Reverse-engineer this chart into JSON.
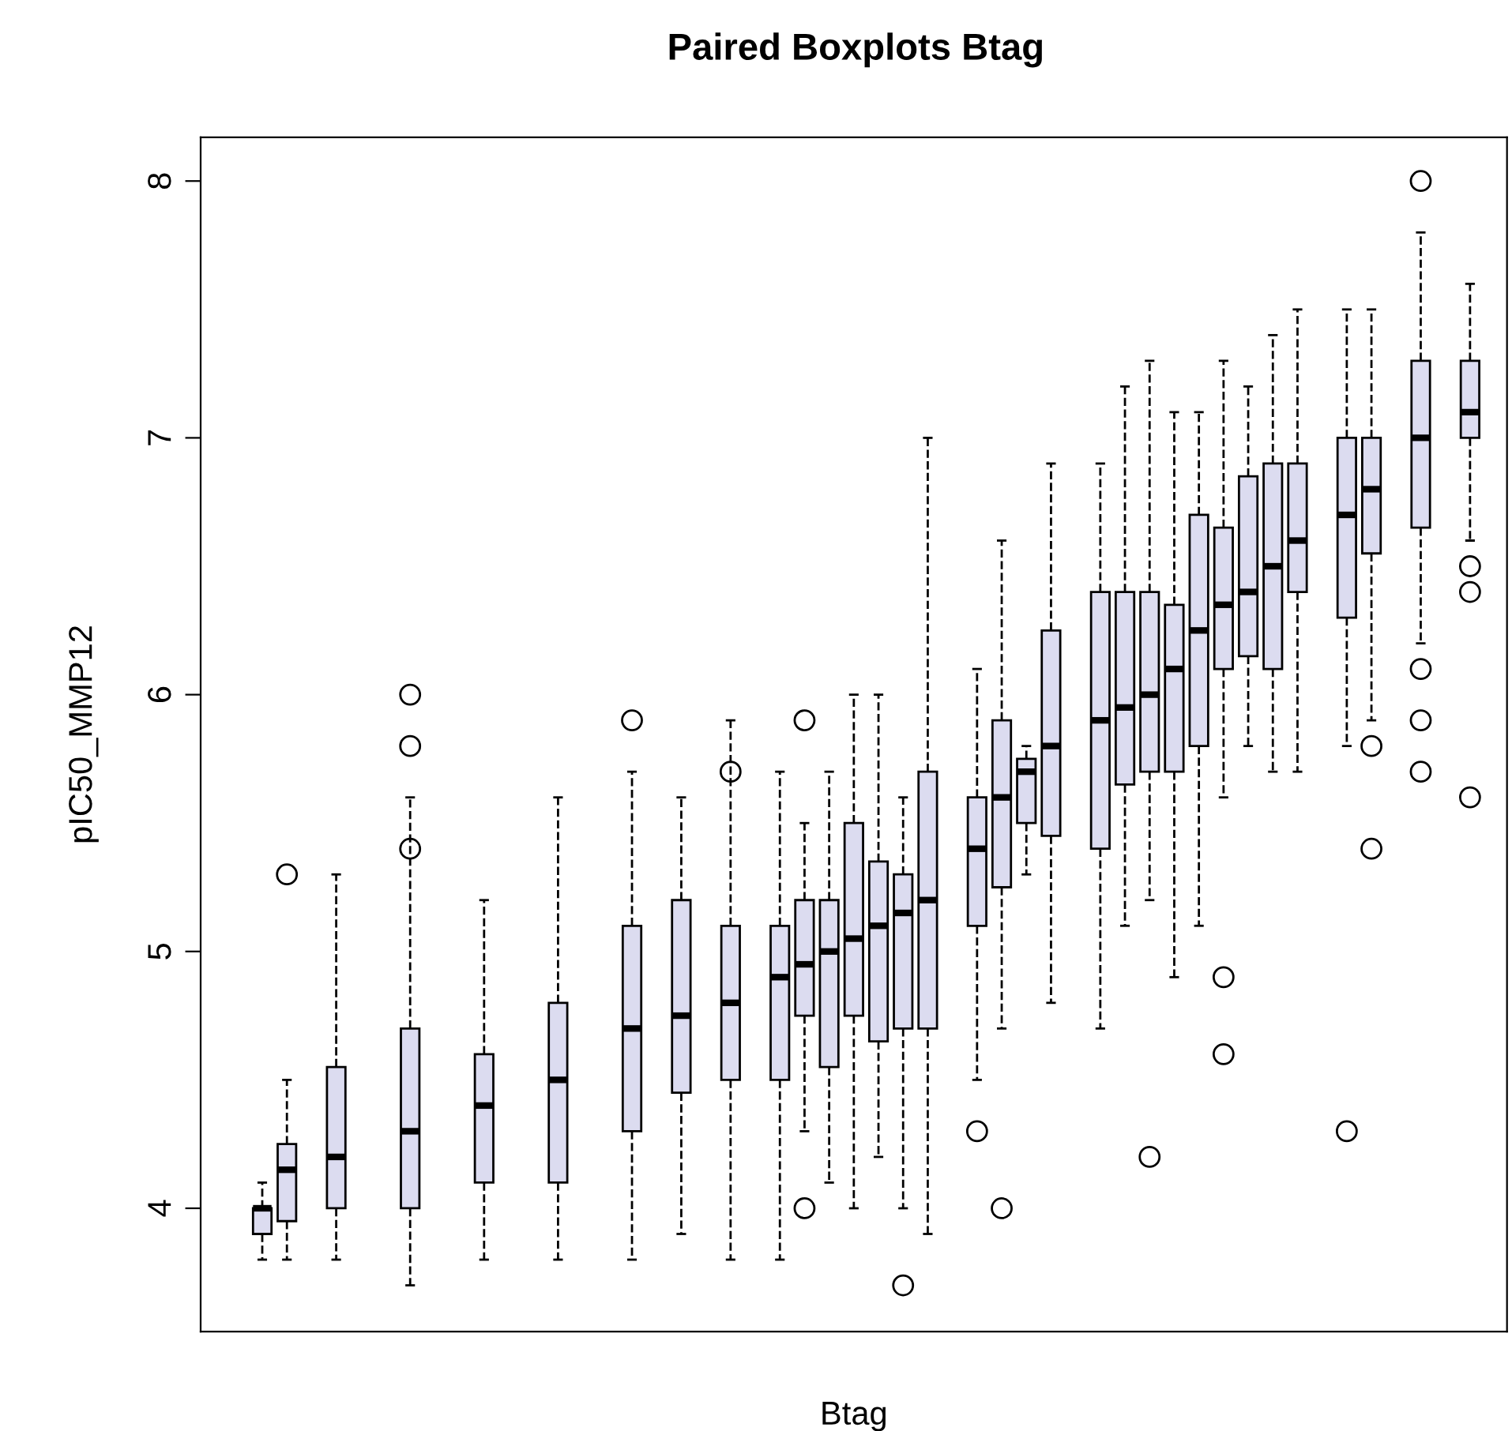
{
  "chart_data": {
    "type": "box",
    "title": "Paired Boxplots Btag",
    "xlabel": "Btag",
    "ylabel": "pIC50_MMP12",
    "categories": [
      null,
      null,
      null,
      null,
      null,
      null,
      null,
      null,
      null,
      null,
      null,
      null,
      null,
      null,
      null,
      null,
      null,
      null,
      null,
      null,
      null,
      null,
      null,
      null,
      null,
      null,
      null,
      null,
      null,
      null,
      null,
      null,
      null,
      null,
      null,
      null,
      null,
      null,
      null,
      null,
      null,
      null,
      null,
      null,
      null,
      null,
      null,
      null,
      null,
      null,
      null,
      null,
      null
    ],
    "color": "#dcdcf0",
    "marker": "circle",
    "line_style": "dashed",
    "grid": false,
    "ylim": [
      3.52,
      8.17
    ],
    "yticks": [
      4,
      5,
      6,
      7,
      8
    ],
    "boxes": [
      null,
      null,
      {
        "low": 3.8,
        "q1": 3.9,
        "median": 4.0,
        "q3": 4.0,
        "high": 4.1
      },
      {
        "low": 3.8,
        "q1": 3.95,
        "median": 4.15,
        "q3": 4.25,
        "high": 4.5,
        "outliers": [
          5.3
        ]
      },
      null,
      {
        "low": 3.8,
        "q1": 4.0,
        "median": 4.2,
        "q3": 4.55,
        "high": 5.3
      },
      null,
      null,
      {
        "low": 3.7,
        "q1": 4.0,
        "median": 4.3,
        "q3": 4.7,
        "high": 5.6,
        "outliers": [
          6.0,
          5.8,
          5.4
        ]
      },
      null,
      null,
      {
        "low": 3.8,
        "q1": 4.1,
        "median": 4.4,
        "q3": 4.6,
        "high": 5.2
      },
      null,
      null,
      {
        "low": 3.8,
        "q1": 4.1,
        "median": 4.5,
        "q3": 4.8,
        "high": 5.6
      },
      null,
      null,
      {
        "low": 3.8,
        "q1": 4.3,
        "median": 4.7,
        "q3": 5.1,
        "high": 5.7,
        "outliers": [
          5.9
        ]
      },
      null,
      {
        "low": 3.9,
        "q1": 4.45,
        "median": 4.75,
        "q3": 5.2,
        "high": 5.6
      },
      null,
      {
        "low": 3.8,
        "q1": 4.5,
        "median": 4.8,
        "q3": 5.1,
        "high": 5.9,
        "outliers": [
          5.7
        ]
      },
      null,
      {
        "low": 3.8,
        "q1": 4.5,
        "median": 4.9,
        "q3": 5.1,
        "high": 5.7
      },
      {
        "low": 4.3,
        "q1": 4.75,
        "median": 4.95,
        "q3": 5.2,
        "high": 5.5,
        "outliers": [
          5.9,
          4.0
        ]
      },
      {
        "low": 4.1,
        "q1": 4.55,
        "median": 5.0,
        "q3": 5.2,
        "high": 5.7
      },
      {
        "low": 4.0,
        "q1": 4.75,
        "median": 5.05,
        "q3": 5.5,
        "high": 6.0
      },
      {
        "low": 4.2,
        "q1": 4.65,
        "median": 5.1,
        "q3": 5.35,
        "high": 6.0
      },
      {
        "low": 4.0,
        "q1": 4.7,
        "median": 5.15,
        "q3": 5.3,
        "high": 5.6,
        "outliers": [
          3.7
        ]
      },
      {
        "low": 3.9,
        "q1": 4.7,
        "median": 5.2,
        "q3": 5.7,
        "high": 7.0
      },
      null,
      {
        "low": 4.5,
        "q1": 5.1,
        "median": 5.4,
        "q3": 5.6,
        "high": 6.1,
        "outliers": [
          4.3
        ]
      },
      {
        "low": 4.7,
        "q1": 5.25,
        "median": 5.6,
        "q3": 5.9,
        "high": 6.6,
        "outliers": [
          4.0
        ]
      },
      {
        "low": 5.3,
        "q1": 5.5,
        "median": 5.7,
        "q3": 5.75,
        "high": 5.8
      },
      {
        "low": 4.8,
        "q1": 5.45,
        "median": 5.8,
        "q3": 6.25,
        "high": 6.9
      },
      null,
      {
        "low": 4.7,
        "q1": 5.4,
        "median": 5.9,
        "q3": 6.4,
        "high": 6.9
      },
      {
        "low": 5.1,
        "q1": 5.65,
        "median": 5.95,
        "q3": 6.4,
        "high": 7.2
      },
      {
        "low": 5.2,
        "q1": 5.7,
        "median": 6.0,
        "q3": 6.4,
        "high": 7.3,
        "outliers": [
          4.2
        ]
      },
      {
        "low": 4.9,
        "q1": 5.7,
        "median": 6.1,
        "q3": 6.35,
        "high": 7.1
      },
      {
        "low": 5.1,
        "q1": 5.8,
        "median": 6.25,
        "q3": 6.7,
        "high": 7.1
      },
      {
        "low": 5.6,
        "q1": 6.1,
        "median": 6.35,
        "q3": 6.65,
        "high": 7.3,
        "outliers": [
          4.9,
          4.6
        ]
      },
      {
        "low": 5.8,
        "q1": 6.15,
        "median": 6.4,
        "q3": 6.85,
        "high": 7.2
      },
      {
        "low": 5.7,
        "q1": 6.1,
        "median": 6.5,
        "q3": 6.9,
        "high": 7.4
      },
      {
        "low": 5.7,
        "q1": 6.4,
        "median": 6.6,
        "q3": 6.9,
        "high": 7.5
      },
      null,
      {
        "low": 5.8,
        "q1": 6.3,
        "median": 6.7,
        "q3": 7.0,
        "high": 7.5,
        "outliers": [
          4.3
        ]
      },
      {
        "low": 5.9,
        "q1": 6.55,
        "median": 6.8,
        "q3": 7.0,
        "high": 7.5,
        "outliers": [
          5.8,
          5.4
        ]
      },
      null,
      {
        "low": 6.2,
        "q1": 6.65,
        "median": 7.0,
        "q3": 7.3,
        "high": 7.8,
        "outliers": [
          8.0,
          6.1,
          5.9,
          5.7
        ]
      },
      null,
      {
        "low": 6.6,
        "q1": 7.0,
        "median": 7.1,
        "q3": 7.3,
        "high": 7.6,
        "outliers": [
          6.5,
          6.4,
          5.6
        ]
      },
      null
    ]
  }
}
